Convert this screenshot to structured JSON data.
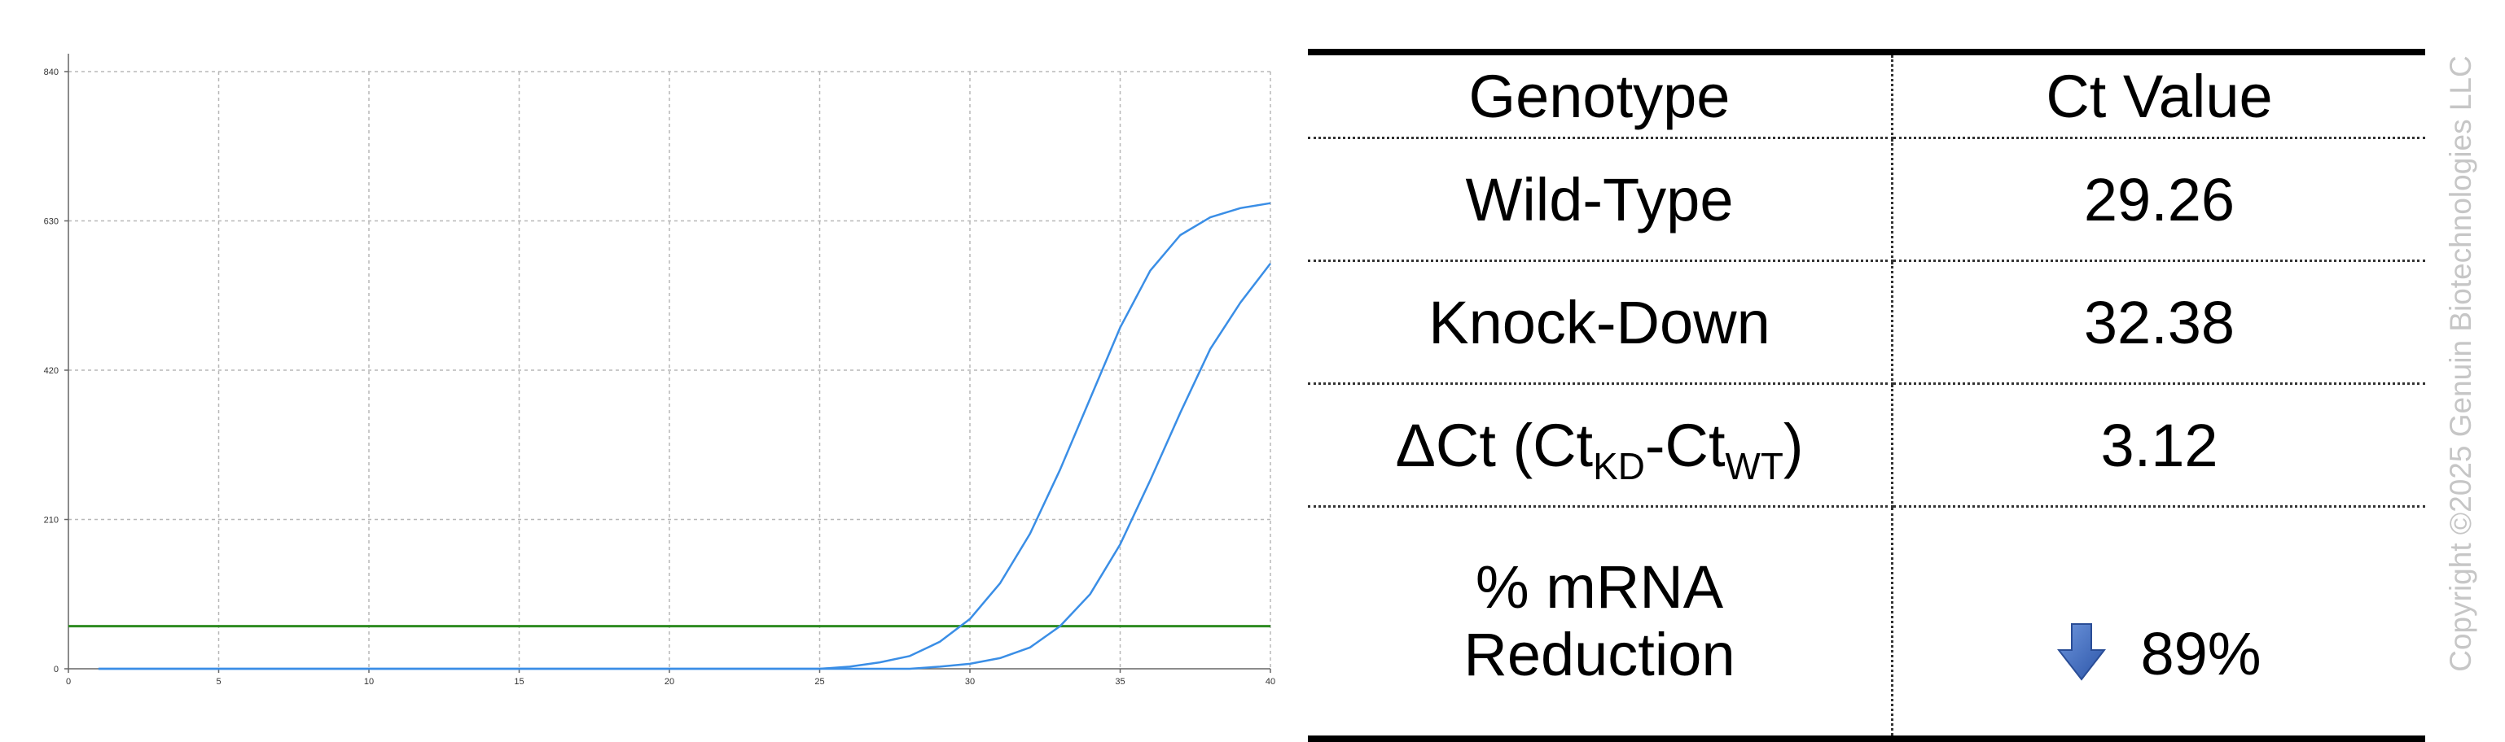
{
  "chart_data": {
    "type": "line",
    "title": "",
    "xlabel": "",
    "ylabel": "",
    "xlim": [
      0,
      40
    ],
    "ylim": [
      0,
      840
    ],
    "x_ticks": [
      0,
      5,
      10,
      15,
      20,
      25,
      30,
      35,
      40
    ],
    "y_ticks": [
      0,
      210,
      420,
      630,
      840
    ],
    "grid": true,
    "threshold": {
      "y": 60,
      "color": "#2e8b22"
    },
    "series": [
      {
        "color": "#3a8ee6",
        "x": [
          1,
          25,
          26,
          27,
          28,
          29,
          30,
          31,
          32,
          33,
          34,
          35,
          36,
          37,
          38,
          39,
          40
        ],
        "y": [
          0,
          0,
          3,
          9,
          18,
          38,
          70,
          120,
          190,
          280,
          380,
          480,
          560,
          610,
          635,
          648,
          655
        ]
      },
      {
        "color": "#3a8ee6",
        "x": [
          1,
          28,
          29,
          30,
          31,
          32,
          33,
          34,
          35,
          36,
          37,
          38,
          39,
          40
        ],
        "y": [
          0,
          0,
          3,
          7,
          15,
          30,
          60,
          105,
          175,
          265,
          360,
          450,
          515,
          570
        ]
      }
    ]
  },
  "table": {
    "headers": [
      "Genotype",
      "Ct Value"
    ],
    "rows": {
      "wild_type": {
        "label": "Wild-Type",
        "value": "29.26"
      },
      "knock_down": {
        "label": "Knock-Down",
        "value": "32.38"
      },
      "delta_ct": {
        "label_prefix": "ΔCt (Ct",
        "sub1": "KD",
        "label_mid": "-Ct",
        "sub2": "WT",
        "label_suffix": ")",
        "value": "3.12"
      },
      "reduction": {
        "label_line1": "% mRNA",
        "label_line2": "Reduction",
        "value": "89%",
        "icon": "down-arrow-icon",
        "icon_color": "#3f6fc4"
      }
    }
  },
  "copyright": "Copyright ©2025 Genuin Biotechnologies LLC"
}
